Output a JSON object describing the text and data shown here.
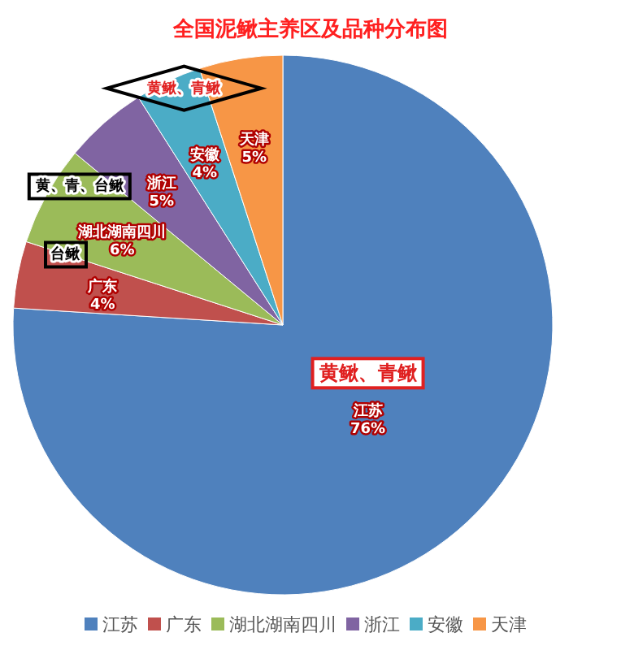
{
  "chart_data": {
    "type": "pie",
    "title": "全国泥鳅主养区及品种分布图",
    "categories": [
      "江苏",
      "广东",
      "湖北湖南四川",
      "浙江",
      "安徽",
      "天津"
    ],
    "values": [
      76,
      4,
      6,
      5,
      4,
      5
    ],
    "colors": [
      "#4f81bd",
      "#c0504d",
      "#9bbb59",
      "#8064a2",
      "#4bacc6",
      "#f79646"
    ],
    "value_labels": [
      "76%",
      "4%",
      "6%",
      "5%",
      "4%",
      "5%"
    ],
    "legend": "bottom",
    "annotations": [
      {
        "text": "黄鳅、青鳅",
        "x": "江苏"
      },
      {
        "text": "台鳅",
        "x": "广东"
      },
      {
        "text": "黄、青、台鳅",
        "x": "湖北湖南四川"
      },
      {
        "text": "黄鳅、青鳅",
        "x": "安徽"
      }
    ]
  }
}
